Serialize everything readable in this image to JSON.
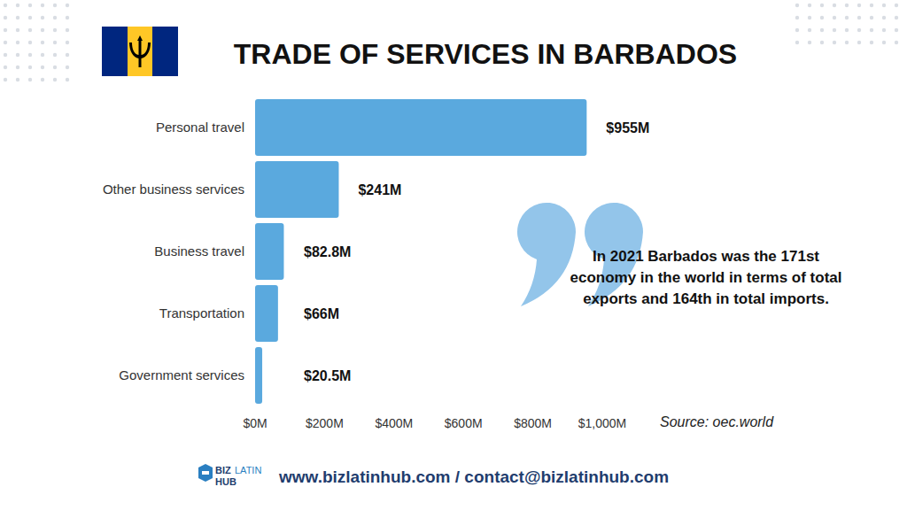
{
  "chart_data": {
    "type": "bar",
    "orientation": "horizontal",
    "title": "TRADE OF SERVICES IN BARBADOS",
    "categories": [
      "Personal travel",
      "Other business services",
      "Business travel",
      "Transportation",
      "Government services"
    ],
    "values": [
      955,
      241,
      82.8,
      66,
      20.5
    ],
    "value_labels": [
      "$955M",
      "$241M",
      "$82.8M",
      "$66M",
      "$20.5M"
    ],
    "data_labels": true,
    "color": "#5aa9de",
    "xlim": [
      0,
      1000
    ],
    "xticks": [
      {
        "value": 0,
        "label": "$0M"
      },
      {
        "value": 200,
        "label": "$200M"
      },
      {
        "value": 400,
        "label": "$400M"
      },
      {
        "value": 600,
        "label": "$600M"
      },
      {
        "value": 800,
        "label": "$800M"
      },
      {
        "value": 1000,
        "label": "$1,000M"
      }
    ],
    "grid": false,
    "annotation": [
      "In 2021 Barbados was the 171st",
      "economy in the world in terms of total",
      "exports and 164th in total imports."
    ],
    "source": "Source: oec.world"
  },
  "footer": {
    "logo": [
      "BIZ",
      "LATIN",
      "HUB"
    ],
    "contact": "www.bizlatinhub.com / contact@bizlatinhub.com"
  }
}
